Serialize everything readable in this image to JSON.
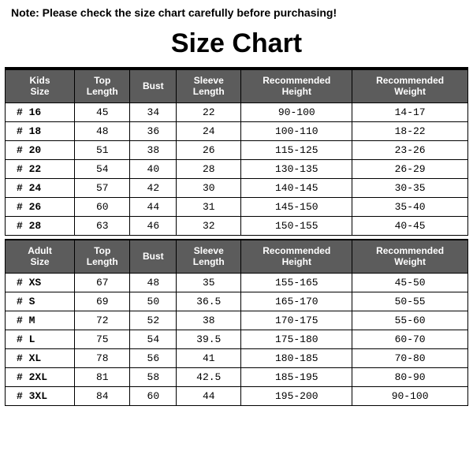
{
  "note": "Note: Please check the size chart carefully before purchasing!",
  "title": "Size Chart",
  "kids": {
    "columns": [
      "Kids Size",
      "Top Length",
      "Bust",
      "Sleeve Length",
      "Recommended Height",
      "Recommended Weight"
    ],
    "rows": [
      [
        "# 16",
        "45",
        "34",
        "22",
        "90-100",
        "14-17"
      ],
      [
        "# 18",
        "48",
        "36",
        "24",
        "100-110",
        "18-22"
      ],
      [
        "# 20",
        "51",
        "38",
        "26",
        "115-125",
        "23-26"
      ],
      [
        "# 22",
        "54",
        "40",
        "28",
        "130-135",
        "26-29"
      ],
      [
        "# 24",
        "57",
        "42",
        "30",
        "140-145",
        "30-35"
      ],
      [
        "# 26",
        "60",
        "44",
        "31",
        "145-150",
        "35-40"
      ],
      [
        "# 28",
        "63",
        "46",
        "32",
        "150-155",
        "40-45"
      ]
    ]
  },
  "adult": {
    "columns": [
      "Adult Size",
      "Top Length",
      "Bust",
      "Sleeve Length",
      "Recommended Height",
      "Recommended Weight"
    ],
    "rows": [
      [
        "# XS",
        "67",
        "48",
        "35",
        "155-165",
        "45-50"
      ],
      [
        "# S",
        "69",
        "50",
        "36.5",
        "165-170",
        "50-55"
      ],
      [
        "# M",
        "72",
        "52",
        "38",
        "170-175",
        "55-60"
      ],
      [
        "# L",
        "75",
        "54",
        "39.5",
        "175-180",
        "60-70"
      ],
      [
        "# XL",
        "78",
        "56",
        "41",
        "180-185",
        "70-80"
      ],
      [
        "# 2XL",
        "81",
        "58",
        "42.5",
        "185-195",
        "80-90"
      ],
      [
        "# 3XL",
        "84",
        "60",
        "44",
        "195-200",
        "90-100"
      ]
    ]
  },
  "style": {
    "header_bg": "#5c5c5c",
    "header_fg": "#ffffff",
    "border_color": "#000000",
    "background": "#ffffff",
    "col_widths_pct": [
      15,
      12,
      10,
      14,
      24,
      25
    ],
    "title_fontsize": 34,
    "note_fontsize": 14,
    "cell_fontsize": 13,
    "header_fontsize": 12,
    "cell_font": "Courier New"
  }
}
